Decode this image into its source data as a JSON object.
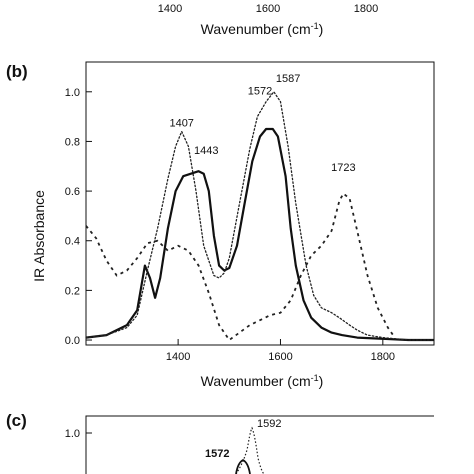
{
  "top_fragment": {
    "tick_labels": [
      "1400",
      "1600",
      "1800"
    ],
    "xlabel": "Wavenumber (cm",
    "xlabel_sup": "-1",
    "xlabel_close": ")"
  },
  "chart_data": [
    {
      "panel": "(b)",
      "type": "line",
      "xlabel": "Wavenumber (cm",
      "xlabel_sup": "-1",
      "xlabel_close": ")",
      "ylabel": "IR Absorbance",
      "xlim": [
        1220,
        1900
      ],
      "ylim": [
        -0.02,
        1.12
      ],
      "x_ticks": [
        1400,
        1600,
        1800
      ],
      "x_tick_labels": [
        "1400",
        "1600",
        "1800"
      ],
      "y_ticks": [
        0.0,
        0.2,
        0.4,
        0.6,
        0.8,
        1.0
      ],
      "y_tick_labels": [
        "0.0",
        "0.2",
        "0.4",
        "0.6",
        "0.8",
        "1.0"
      ],
      "annotations": [
        {
          "text": "1407",
          "x": 1407,
          "y": 0.86
        },
        {
          "text": "1443",
          "x": 1455,
          "y": 0.75
        },
        {
          "text": "1572",
          "x": 1560,
          "y": 0.99
        },
        {
          "text": "1587",
          "x": 1615,
          "y": 1.04
        },
        {
          "text": "1723",
          "x": 1723,
          "y": 0.68
        }
      ],
      "series": [
        {
          "style": "solid",
          "x": [
            1220,
            1260,
            1300,
            1320,
            1335,
            1345,
            1355,
            1365,
            1380,
            1395,
            1410,
            1425,
            1440,
            1450,
            1460,
            1470,
            1480,
            1490,
            1500,
            1515,
            1530,
            1545,
            1560,
            1572,
            1585,
            1595,
            1610,
            1620,
            1630,
            1645,
            1660,
            1680,
            1700,
            1720,
            1750,
            1800,
            1850,
            1900
          ],
          "y": [
            0.01,
            0.02,
            0.06,
            0.12,
            0.3,
            0.25,
            0.17,
            0.25,
            0.45,
            0.6,
            0.66,
            0.67,
            0.68,
            0.67,
            0.6,
            0.42,
            0.3,
            0.28,
            0.29,
            0.38,
            0.55,
            0.72,
            0.82,
            0.85,
            0.85,
            0.82,
            0.66,
            0.45,
            0.3,
            0.16,
            0.09,
            0.05,
            0.03,
            0.02,
            0.01,
            0.005,
            0.0,
            0.0
          ]
        },
        {
          "style": "dotted",
          "x": [
            1220,
            1260,
            1300,
            1320,
            1340,
            1360,
            1380,
            1395,
            1407,
            1420,
            1435,
            1450,
            1470,
            1480,
            1490,
            1500,
            1520,
            1540,
            1555,
            1572,
            1587,
            1600,
            1615,
            1630,
            1650,
            1665,
            1680,
            1700,
            1715,
            1735,
            1750,
            1770,
            1800,
            1850,
            1900
          ],
          "y": [
            0.01,
            0.02,
            0.05,
            0.1,
            0.28,
            0.45,
            0.65,
            0.78,
            0.84,
            0.78,
            0.6,
            0.38,
            0.26,
            0.25,
            0.27,
            0.33,
            0.55,
            0.77,
            0.9,
            0.96,
            1.0,
            0.96,
            0.78,
            0.55,
            0.3,
            0.18,
            0.13,
            0.11,
            0.09,
            0.06,
            0.04,
            0.02,
            0.01,
            0.0,
            0.0
          ]
        },
        {
          "style": "dashed",
          "x": [
            1220,
            1240,
            1260,
            1280,
            1300,
            1320,
            1340,
            1360,
            1380,
            1400,
            1420,
            1440,
            1460,
            1480,
            1500,
            1520,
            1540,
            1560,
            1580,
            1600,
            1620,
            1640,
            1660,
            1680,
            1700,
            1715,
            1723,
            1735,
            1750,
            1770,
            1790,
            1810,
            1820
          ],
          "y": [
            0.46,
            0.41,
            0.32,
            0.26,
            0.28,
            0.33,
            0.39,
            0.4,
            0.36,
            0.38,
            0.36,
            0.3,
            0.19,
            0.06,
            0.0,
            0.03,
            0.06,
            0.08,
            0.1,
            0.11,
            0.16,
            0.26,
            0.34,
            0.38,
            0.44,
            0.56,
            0.59,
            0.57,
            0.44,
            0.26,
            0.13,
            0.05,
            0.02
          ]
        }
      ]
    },
    {
      "panel": "(c)",
      "type": "line",
      "y_ticks": [
        1.0
      ],
      "y_tick_labels": [
        "1.0"
      ],
      "annotations": [
        {
          "text": "1592",
          "bold": false
        },
        {
          "text": "1572",
          "bold": true
        }
      ]
    }
  ]
}
